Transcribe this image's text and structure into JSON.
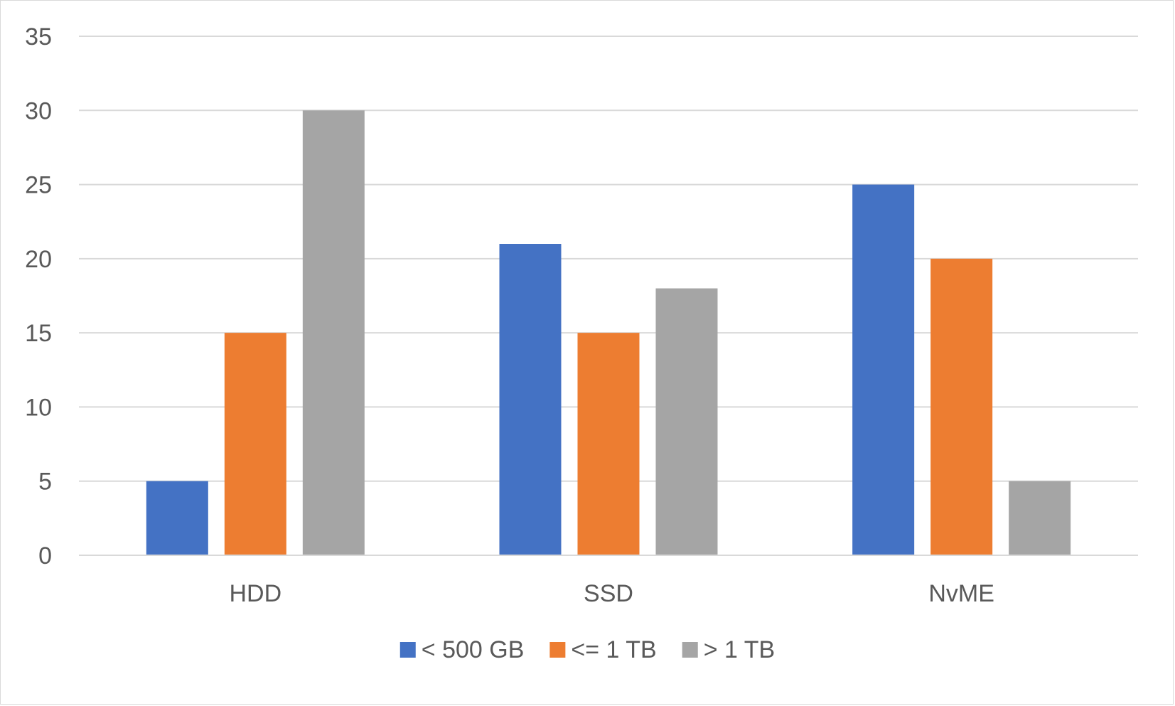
{
  "chart_data": {
    "type": "bar",
    "title": "",
    "xlabel": "",
    "ylabel": "",
    "categories": [
      "HDD",
      "SSD",
      "NvME"
    ],
    "series": [
      {
        "name": "< 500 GB",
        "values": [
          5,
          21,
          25
        ],
        "color": "#4472C4"
      },
      {
        "name": "<= 1 TB",
        "values": [
          15,
          15,
          20
        ],
        "color": "#ED7D31"
      },
      {
        "name": "> 1 TB",
        "values": [
          30,
          18,
          5
        ],
        "color": "#A5A5A5"
      }
    ],
    "ylim": [
      0,
      35
    ],
    "yticks": [
      0,
      5,
      10,
      15,
      20,
      25,
      30,
      35
    ],
    "grid": true,
    "gridline_color": "#d9d9d9",
    "legend_position": "bottom"
  }
}
